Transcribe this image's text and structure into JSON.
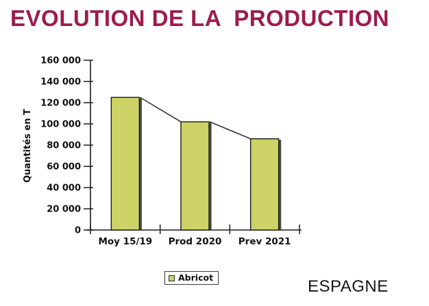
{
  "title": "EVOLUTION DE LA  PRODUCTION",
  "legend": {
    "items": [
      {
        "label": "Abricot",
        "color": "#CDD266"
      }
    ]
  },
  "footer": {
    "region_label": "ESPAGNE"
  },
  "colors": {
    "title": "#9E1B4B",
    "bar_fill": "#CDD266",
    "bar_edge": "#1A1A1A",
    "bar_shadow": "#4A4A4A",
    "axis": "#1A1A1A",
    "trend_line": "#333333",
    "text": "#111111"
  },
  "chart_data": {
    "type": "bar",
    "categories": [
      "Moy 15/19",
      "Prod 2020",
      "Prev 2021"
    ],
    "series": [
      {
        "name": "Abricot",
        "values": [
          125000,
          102000,
          86000
        ]
      }
    ],
    "overlay_line_between_bar_tops": true,
    "title": "",
    "xlabel": "",
    "ylabel": "Quantités en T",
    "ylim": [
      0,
      160000
    ],
    "ytick_step": 20000,
    "ytick_labels": [
      "0",
      "20 000",
      "40 000",
      "60 000",
      "80 000",
      "100 000",
      "120 000",
      "140 000",
      "160 000"
    ],
    "grid": false,
    "legend_position": "bottom-center",
    "thousands_separator": " "
  }
}
